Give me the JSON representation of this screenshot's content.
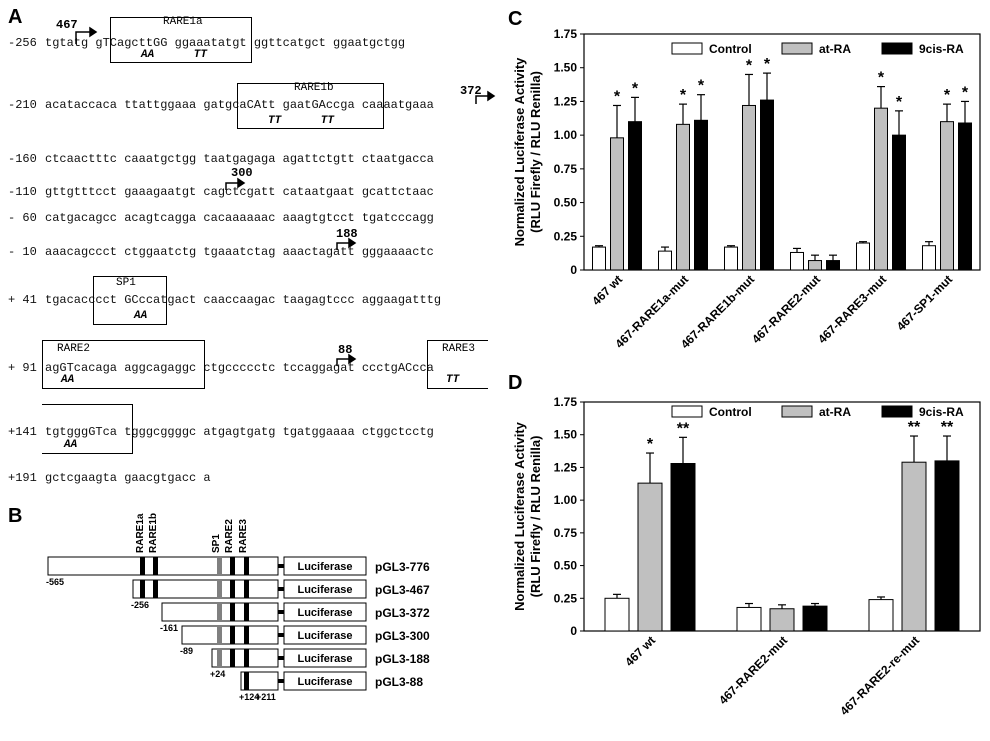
{
  "panels": {
    "a": "A",
    "b": "B",
    "c": "C",
    "d": "D"
  },
  "sequence": {
    "lines": [
      {
        "pos": "-256",
        "seq": "tgtatg gTCagcttGG ggaaatatgt ggttcatgct ggaatgctgg"
      },
      {
        "pos": "-210",
        "seq": "acataccaca ttattggaaa gatgcaCAtt gaatGAccga caaaatgaaa"
      },
      {
        "pos": "-160",
        "seq": "ctcaactttc caaatgctgg taatgagaga agattctgtt ctaatgacca"
      },
      {
        "pos": "-110",
        "seq": "gttgtttcct gaaagaatgt cagctcgatt cataatgaat gcattctaac"
      },
      {
        "pos": "- 60",
        "seq": "catgacagcc acagtcagga cacaaaaaac aaagtgtcct tgatcccagg"
      },
      {
        "pos": "- 10",
        "seq": "aaacagccct ctggaatctg tgaaatctag aaactagatt gggaaaactc"
      },
      {
        "pos": "+ 41",
        "seq": "tgacacccct GCccatgact caaccaagac taagagtccc aggaagatttg"
      },
      {
        "pos": "+ 91",
        "seq": "agGTcacaga aggcagaggc ctgccccctc tccaggagat ccctgACcca"
      },
      {
        "pos": "+141",
        "seq": "tgtgggGTca tgggcggggc atgagtgatg tgatggaaaa ctggctcctg"
      },
      {
        "pos": "+191",
        "seq": "gctcgaagta gaacgtgacc a"
      }
    ],
    "boxes": [
      {
        "title": "RARE1a",
        "sub": "AA      TT"
      },
      {
        "title": "RARE1b",
        "sub": "TT      TT"
      },
      {
        "title": "SP1",
        "sub": "AA"
      },
      {
        "title": "RARE2",
        "sub": "AA"
      },
      {
        "title": "RARE3",
        "sub": "TT"
      },
      {
        "title": "",
        "sub": "AA"
      }
    ],
    "tss": [
      "467",
      "372",
      "300",
      "188",
      "88"
    ]
  },
  "constructs": {
    "element_labels": [
      "RARE1a",
      "RARE1b",
      "SP1",
      "RARE2",
      "RARE3"
    ],
    "luciferase_label": "Luciferase",
    "rows": [
      {
        "name": "pGL3-776",
        "start": "-565"
      },
      {
        "name": "pGL3-467",
        "start": "-256"
      },
      {
        "name": "pGL3-372",
        "start": "-161"
      },
      {
        "name": "pGL3-300",
        "start": "-89"
      },
      {
        "name": "pGL3-188",
        "start": "+24"
      },
      {
        "name": "pGL3-88",
        "start": "+124",
        "end": "+211"
      }
    ]
  },
  "colors": {
    "control": "#ffffff",
    "atRA": "#c0c0c0",
    "nineCis": "#000000"
  },
  "chart_data": [
    {
      "type": "bar",
      "panel": "C",
      "ylabel": "Normalized Luciferase Activity (RLU Firefly / RLU Renilla)",
      "ylabel_lines": [
        "Normalized Luciferase Activity",
        "(RLU Firefly / RLU Renilla)"
      ],
      "ylim": [
        0,
        1.75
      ],
      "yticks": [
        "0",
        "0.25",
        "0.50",
        "0.75",
        "1.00",
        "1.25",
        "1.50",
        "1.75"
      ],
      "legend": "top",
      "categories": [
        "467 wt",
        "467-RARE1a-mut",
        "467-RARE1b-mut",
        "467-RARE2-mut",
        "467-RARE3-mut",
        "467-SP1-mut"
      ],
      "series": [
        {
          "name": "Control",
          "values": [
            0.17,
            0.14,
            0.17,
            0.13,
            0.2,
            0.18
          ],
          "errors": [
            0.01,
            0.03,
            0.01,
            0.03,
            0.01,
            0.03
          ]
        },
        {
          "name": "at-RA",
          "values": [
            0.98,
            1.08,
            1.22,
            0.07,
            1.2,
            1.1
          ],
          "errors": [
            0.24,
            0.15,
            0.23,
            0.04,
            0.16,
            0.13
          ]
        },
        {
          "name": "9cis-RA",
          "values": [
            1.1,
            1.11,
            1.26,
            0.07,
            1.0,
            1.09
          ],
          "errors": [
            0.18,
            0.19,
            0.2,
            0.04,
            0.18,
            0.16
          ]
        }
      ],
      "significance": [
        [
          "",
          "*",
          "*"
        ],
        [
          "",
          "*",
          "*"
        ],
        [
          "",
          "*",
          "*"
        ],
        [
          "",
          "",
          ""
        ],
        [
          "",
          "*",
          "*"
        ],
        [
          "",
          "*",
          "*"
        ]
      ]
    },
    {
      "type": "bar",
      "panel": "D",
      "ylabel": "Normalized Luciferase Activity (RLU Firefly / RLU Renilla)",
      "ylabel_lines": [
        "Normalized Luciferase Activity",
        "(RLU Firefly / RLU Renilla)"
      ],
      "ylim": [
        0,
        1.75
      ],
      "yticks": [
        "0",
        "0.25",
        "0.50",
        "0.75",
        "1.00",
        "1.25",
        "1.50",
        "1.75"
      ],
      "legend": "top",
      "categories": [
        "467 wt",
        "467-RARE2-mut",
        "467-RARE2-re-mut"
      ],
      "series": [
        {
          "name": "Control",
          "values": [
            0.25,
            0.18,
            0.24
          ],
          "errors": [
            0.03,
            0.03,
            0.02
          ]
        },
        {
          "name": "at-RA",
          "values": [
            1.13,
            0.17,
            1.29
          ],
          "errors": [
            0.23,
            0.03,
            0.2
          ]
        },
        {
          "name": "9cis-RA",
          "values": [
            1.28,
            0.19,
            1.3
          ],
          "errors": [
            0.2,
            0.02,
            0.19
          ]
        }
      ],
      "significance": [
        [
          "",
          "*",
          "**"
        ],
        [
          "",
          "",
          ""
        ],
        [
          "",
          "**",
          "**"
        ]
      ]
    }
  ]
}
